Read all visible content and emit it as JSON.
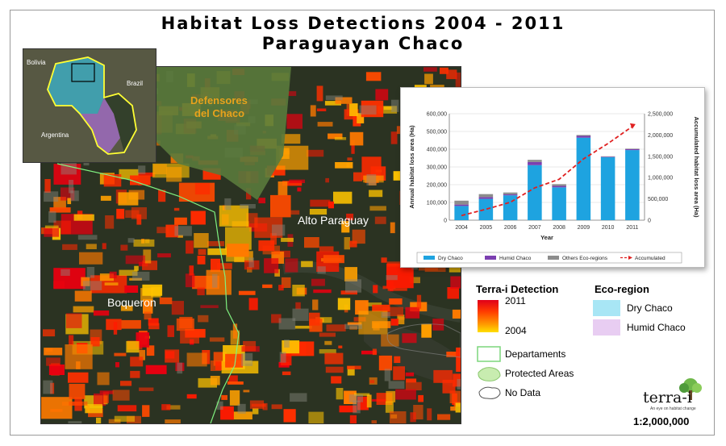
{
  "title": {
    "line1": "Habitat Loss Detections 2004 - 2011",
    "line2": "Paraguayan Chaco"
  },
  "map": {
    "labels": {
      "defensores_1": "Defensores",
      "defensores_2": "del Chaco",
      "alto_paraguay": "Alto Paraguay",
      "boqueron": "Boqueron"
    },
    "colors": {
      "background": "#2b3322",
      "protected": "#5a7a3c",
      "department_line": "#7ff07f",
      "loss_new": "#ff1a00",
      "loss_old": "#ffd400"
    }
  },
  "inset": {
    "labels": {
      "bolivia": "Bolivia",
      "brazil": "Brazil",
      "argentina": "Argentina"
    },
    "colors": {
      "dry_chaco": "#3fa6b8",
      "humid_chaco": "#9a6ab8",
      "border": "#ffff33"
    }
  },
  "legend": {
    "detection_title": "Terra-i Detection",
    "year_max": "2011",
    "year_min": "2004",
    "ecoregion_title": "Eco-region",
    "dry_chaco": "Dry Chaco",
    "humid_chaco": "Humid Chaco",
    "departments": "Departaments",
    "protected_areas": "Protected Areas",
    "no_data": "No Data",
    "colors": {
      "dry_chaco": "#a8e6f5",
      "humid_chaco": "#e8cdf2"
    }
  },
  "branding": {
    "logo": "terra-i",
    "tagline": "An eye on habitat change",
    "scale": "1:2,000,000"
  },
  "chart_data": {
    "type": "bar",
    "categories": [
      "2004",
      "2005",
      "2006",
      "2007",
      "2008",
      "2009",
      "2010",
      "2011"
    ],
    "series": [
      {
        "name": "Dry Chaco",
        "values": [
          80000,
          120000,
          140000,
          310000,
          185000,
          465000,
          355000,
          395000
        ],
        "color": "#1ea3e0"
      },
      {
        "name": "Humid Chaco",
        "values": [
          8000,
          10000,
          6000,
          18000,
          8000,
          10000,
          3000,
          5000
        ],
        "color": "#7b3fb0"
      },
      {
        "name": "Others Eco-regions",
        "values": [
          22000,
          17000,
          10000,
          12000,
          10000,
          5000,
          2000,
          3000
        ],
        "color": "#8c8c8c"
      }
    ],
    "line": {
      "name": "Accumulated",
      "values": [
        110000,
        255000,
        420000,
        760000,
        960000,
        1440000,
        1800000,
        2200000
      ],
      "color": "#e02020"
    },
    "xlabel": "Year",
    "ylabel_left": "Annual habitat loss area (Ha)",
    "ylabel_right": "Accumulated habitat loss area (Ha)",
    "ylim_left": [
      0,
      600000
    ],
    "ylim_right": [
      0,
      2500000
    ],
    "yticks_left": [
      "0",
      "100,000",
      "200,000",
      "300,000",
      "400,000",
      "500,000",
      "600,000"
    ],
    "yticks_right": [
      "0",
      "500,000",
      "1,000,000",
      "1,500,000",
      "2,000,000",
      "2,500,000"
    ],
    "legend_position": "bottom"
  }
}
